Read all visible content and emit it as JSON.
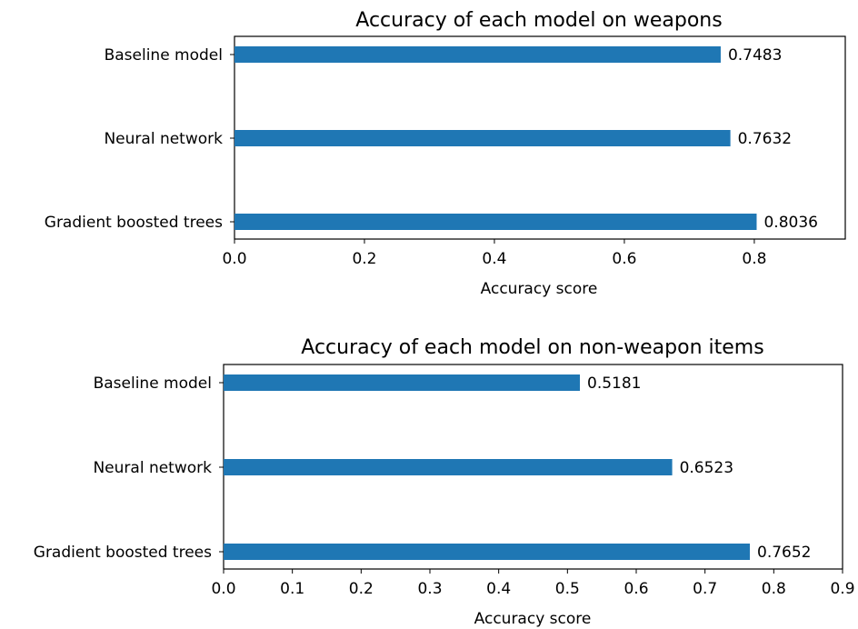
{
  "chart_data": [
    {
      "type": "bar",
      "orientation": "horizontal",
      "title": "Accuracy of each model on weapons",
      "xlabel": "Accuracy score",
      "ylabel": "",
      "categories": [
        "Baseline model",
        "Neural network",
        "Gradient boosted trees"
      ],
      "values": [
        0.7483,
        0.7632,
        0.8036
      ],
      "value_labels": [
        "0.7483",
        "0.7632",
        "0.8036"
      ],
      "xlim": [
        0,
        0.94
      ],
      "xticks": [
        0.0,
        0.2,
        0.4,
        0.6,
        0.8
      ],
      "xtick_labels": [
        "0.0",
        "0.2",
        "0.4",
        "0.6",
        "0.8"
      ],
      "bar_color": "#1f77b4",
      "grid": false
    },
    {
      "type": "bar",
      "orientation": "horizontal",
      "title": "Accuracy of each model on non-weapon items",
      "xlabel": "Accuracy score",
      "ylabel": "",
      "categories": [
        "Baseline model",
        "Neural network",
        "Gradient boosted trees"
      ],
      "values": [
        0.5181,
        0.6523,
        0.7652
      ],
      "value_labels": [
        "0.5181",
        "0.6523",
        "0.7652"
      ],
      "xlim": [
        0,
        0.9
      ],
      "xticks": [
        0.0,
        0.1,
        0.2,
        0.3,
        0.4,
        0.5,
        0.6,
        0.7,
        0.8,
        0.9
      ],
      "xtick_labels": [
        "0.0",
        "0.1",
        "0.2",
        "0.3",
        "0.4",
        "0.5",
        "0.6",
        "0.7",
        "0.8",
        "0.9"
      ],
      "bar_color": "#1f77b4",
      "grid": false
    }
  ]
}
